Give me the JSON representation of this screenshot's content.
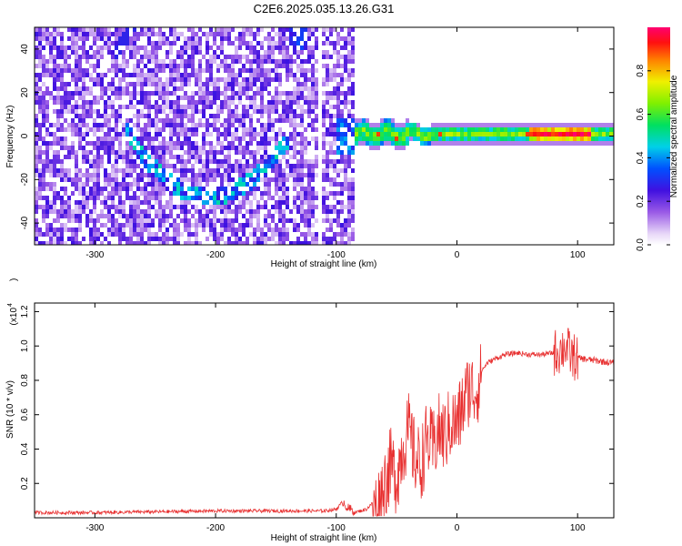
{
  "title": "C2E6.2025.035.13.26.G31",
  "chart_data": [
    {
      "type": "heatmap",
      "xlabel": "Height of straight line (km)",
      "ylabel": "Frequency (Hz)",
      "xlim": [
        -350,
        130
      ],
      "ylim": [
        -50,
        50
      ],
      "xticks": [
        -300,
        -200,
        -100,
        0,
        100
      ],
      "yticks": [
        -40,
        -20,
        0,
        20,
        40
      ],
      "colorbar": {
        "label": "Normalized spectral amplitude",
        "range": [
          0,
          1
        ],
        "ticks": [
          "0.0",
          "0.2",
          "0.4",
          "0.6",
          "0.8"
        ],
        "colormap": "white-purple-blue-cyan-green-yellow-red-magenta"
      },
      "grid": false
    },
    {
      "type": "line",
      "xlabel": "Height of straight line (km)",
      "ylabel": "SNR (10 * v/v)",
      "yscale_label": "(x10",
      "yscale_exp": "4",
      "xlim": [
        -350,
        130
      ],
      "ylim": [
        0,
        1.25
      ],
      "xticks": [
        -300,
        -200,
        -100,
        0,
        100
      ],
      "yticks": [
        "0.2",
        "0.4",
        "0.6",
        "0.8",
        "1.0",
        "1.2"
      ],
      "line_color": "#e83030",
      "grid": false,
      "x": [
        -350,
        -300,
        -250,
        -200,
        -150,
        -110,
        -100,
        -95,
        -90,
        -85,
        -75,
        -65,
        -60,
        -55,
        -50,
        -45,
        -40,
        -35,
        -30,
        -25,
        -20,
        -15,
        -10,
        -5,
        0,
        5,
        10,
        15,
        20,
        25,
        30,
        40,
        50,
        60,
        70,
        80,
        85,
        90,
        95,
        100,
        110,
        120,
        130
      ],
      "y": [
        0.03,
        0.03,
        0.035,
        0.04,
        0.04,
        0.04,
        0.05,
        0.09,
        0.04,
        0.03,
        0.05,
        0.12,
        0.25,
        0.35,
        0.28,
        0.45,
        0.55,
        0.4,
        0.35,
        0.5,
        0.45,
        0.55,
        0.52,
        0.6,
        0.58,
        0.7,
        0.8,
        0.78,
        0.85,
        0.9,
        0.92,
        0.95,
        0.96,
        0.95,
        0.95,
        0.96,
        0.97,
        1.0,
        0.94,
        0.93,
        0.92,
        0.91,
        0.9
      ]
    }
  ]
}
